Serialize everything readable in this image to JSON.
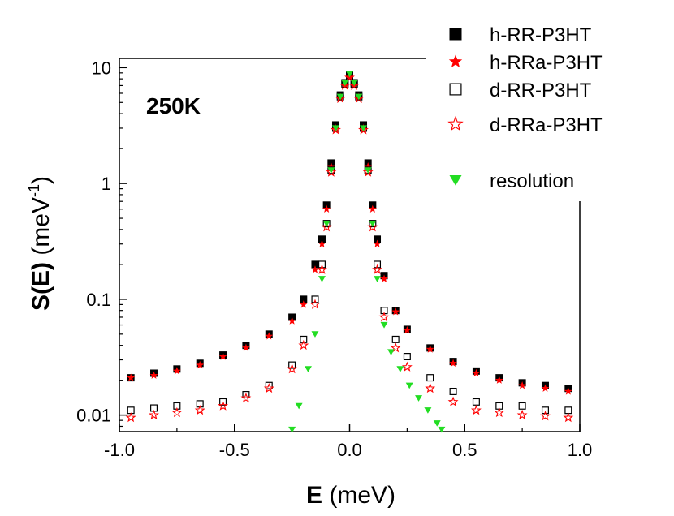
{
  "chart_data": {
    "type": "scatter",
    "title": "",
    "annotation": "250K",
    "xlabel": {
      "bold": "E",
      "rest": " (meV)"
    },
    "ylabel": {
      "bold": "S(E)",
      "rest": " (meV",
      "sup": "-1",
      "close": ")"
    },
    "xlim": [
      -1.0,
      1.0
    ],
    "ylim": [
      0.0072,
      12
    ],
    "yscale": "log",
    "xticks": [
      -1.0,
      -0.5,
      0.0,
      0.5,
      1.0
    ],
    "xtick_labels": [
      "-1.0",
      "-0.5",
      "0.0",
      "0.5",
      "1.0"
    ],
    "yticks": [
      0.01,
      0.1,
      1,
      10
    ],
    "ytick_labels": [
      "0.01",
      "0.1",
      "1",
      "10"
    ],
    "grid": false,
    "legend_position": "top-right",
    "series": [
      {
        "name": "h-RR-P3HT",
        "marker": "filled-square",
        "color": "#000000",
        "x": [
          -0.95,
          -0.85,
          -0.75,
          -0.65,
          -0.55,
          -0.45,
          -0.35,
          -0.25,
          -0.2,
          -0.15,
          -0.12,
          -0.1,
          -0.08,
          -0.06,
          -0.04,
          -0.02,
          0.0,
          0.02,
          0.04,
          0.06,
          0.08,
          0.1,
          0.12,
          0.15,
          0.2,
          0.25,
          0.35,
          0.45,
          0.55,
          0.65,
          0.75,
          0.85,
          0.95
        ],
        "y": [
          0.021,
          0.023,
          0.025,
          0.028,
          0.033,
          0.04,
          0.05,
          0.07,
          0.1,
          0.2,
          0.33,
          0.65,
          1.5,
          3.2,
          5.8,
          7.4,
          8.6,
          7.4,
          5.8,
          3.2,
          1.5,
          0.65,
          0.33,
          0.16,
          0.08,
          0.055,
          0.038,
          0.029,
          0.024,
          0.021,
          0.019,
          0.018,
          0.017
        ]
      },
      {
        "name": "h-RRa-P3HT",
        "marker": "filled-star",
        "color": "#ff0000",
        "x": [
          -0.95,
          -0.85,
          -0.75,
          -0.65,
          -0.55,
          -0.45,
          -0.35,
          -0.25,
          -0.2,
          -0.15,
          -0.12,
          -0.1,
          -0.08,
          -0.06,
          -0.04,
          -0.02,
          0.0,
          0.02,
          0.04,
          0.06,
          0.08,
          0.1,
          0.12,
          0.15,
          0.2,
          0.25,
          0.35,
          0.45,
          0.55,
          0.65,
          0.75,
          0.85,
          0.95
        ],
        "y": [
          0.021,
          0.022,
          0.024,
          0.027,
          0.032,
          0.038,
          0.048,
          0.065,
          0.09,
          0.18,
          0.3,
          0.6,
          1.4,
          3.0,
          5.5,
          7.1,
          8.2,
          7.1,
          5.5,
          3.0,
          1.4,
          0.6,
          0.3,
          0.15,
          0.078,
          0.054,
          0.037,
          0.028,
          0.023,
          0.02,
          0.018,
          0.017,
          0.016
        ]
      },
      {
        "name": "d-RR-P3HT",
        "marker": "open-square",
        "color": "#000000",
        "x": [
          -0.95,
          -0.85,
          -0.75,
          -0.65,
          -0.55,
          -0.45,
          -0.35,
          -0.25,
          -0.2,
          -0.15,
          -0.12,
          -0.1,
          -0.08,
          -0.06,
          -0.04,
          -0.02,
          0.0,
          0.02,
          0.04,
          0.06,
          0.08,
          0.1,
          0.12,
          0.15,
          0.2,
          0.25,
          0.35,
          0.45,
          0.55,
          0.65,
          0.75,
          0.85,
          0.95
        ],
        "y": [
          0.011,
          0.0115,
          0.012,
          0.0125,
          0.013,
          0.015,
          0.018,
          0.027,
          0.045,
          0.1,
          0.2,
          0.45,
          1.3,
          3.0,
          5.6,
          7.2,
          8.4,
          7.2,
          5.6,
          3.0,
          1.3,
          0.45,
          0.2,
          0.08,
          0.045,
          0.032,
          0.021,
          0.016,
          0.013,
          0.012,
          0.012,
          0.011,
          0.011
        ]
      },
      {
        "name": "d-RRa-P3HT",
        "marker": "open-star",
        "color": "#ff0000",
        "x": [
          -0.95,
          -0.85,
          -0.75,
          -0.65,
          -0.55,
          -0.45,
          -0.35,
          -0.25,
          -0.2,
          -0.15,
          -0.12,
          -0.1,
          -0.08,
          -0.06,
          -0.04,
          -0.02,
          0.0,
          0.02,
          0.04,
          0.06,
          0.08,
          0.1,
          0.12,
          0.15,
          0.2,
          0.25,
          0.35,
          0.45,
          0.55,
          0.65,
          0.75,
          0.85,
          0.95
        ],
        "y": [
          0.0095,
          0.01,
          0.0105,
          0.011,
          0.012,
          0.014,
          0.017,
          0.025,
          0.04,
          0.09,
          0.18,
          0.42,
          1.25,
          2.9,
          5.4,
          7.0,
          8.2,
          7.0,
          5.4,
          2.9,
          1.25,
          0.42,
          0.18,
          0.07,
          0.038,
          0.026,
          0.017,
          0.013,
          0.011,
          0.0105,
          0.01,
          0.0098,
          0.0095
        ]
      },
      {
        "name": "resolution",
        "marker": "filled-triangle-down",
        "color": "#22dd22",
        "x": [
          -0.25,
          -0.22,
          -0.18,
          -0.15,
          -0.12,
          -0.1,
          -0.08,
          -0.06,
          -0.04,
          -0.02,
          0.0,
          0.02,
          0.04,
          0.06,
          0.08,
          0.1,
          0.12,
          0.15,
          0.18,
          0.22,
          0.26,
          0.3,
          0.34,
          0.38,
          0.4
        ],
        "y": [
          0.0075,
          0.012,
          0.025,
          0.05,
          0.15,
          0.45,
          1.3,
          3.0,
          5.6,
          7.4,
          8.8,
          7.4,
          5.6,
          3.0,
          1.3,
          0.45,
          0.15,
          0.06,
          0.035,
          0.025,
          0.018,
          0.014,
          0.011,
          0.0085,
          0.0075
        ]
      }
    ]
  }
}
